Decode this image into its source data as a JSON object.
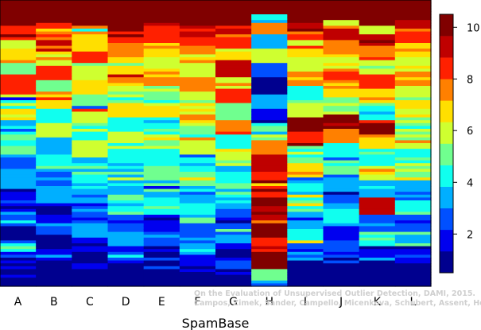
{
  "chart_data": {
    "type": "heatmap",
    "title": "",
    "xlabel": "SpamBase",
    "ylabel": "",
    "categories": [
      "A",
      "B",
      "C",
      "D",
      "E",
      "F",
      "G",
      "H",
      "I",
      "J",
      "K",
      "L"
    ],
    "color_scale": {
      "min": 0.5,
      "max": 10.5,
      "ticks": [
        2,
        4,
        6,
        8,
        10
      ],
      "colors": [
        "#00008f",
        "#0000ef",
        "#0050ff",
        "#00afff",
        "#10ffef",
        "#70ff8f",
        "#cfff30",
        "#ffdf00",
        "#ff8000",
        "#ff2000",
        "#bf0000",
        "#800000"
      ]
    },
    "grid": false,
    "legend": "colorbar-right",
    "rows_ranked": 100,
    "columns": [
      {
        "name": "A",
        "runs": [
          [
            0.07,
            10.5
          ],
          [
            0.02,
            9.6
          ],
          [
            0.04,
            8.2
          ],
          [
            0.03,
            6.3
          ],
          [
            0.05,
            7.1
          ],
          [
            0.04,
            5.4
          ],
          [
            0.06,
            8.6
          ],
          [
            0.05,
            4.2
          ],
          [
            0.04,
            6.8
          ],
          [
            0.05,
            3.1
          ],
          [
            0.06,
            4.8
          ],
          [
            0.05,
            2.6
          ],
          [
            0.06,
            3.4
          ],
          [
            0.07,
            1.9
          ],
          [
            0.05,
            2.8
          ],
          [
            0.05,
            1.2
          ],
          [
            0.04,
            4.2
          ],
          [
            0.04,
            1.6
          ],
          [
            0.05,
            0.8
          ]
        ]
      },
      {
        "name": "B",
        "runs": [
          [
            0.07,
            10.5
          ],
          [
            0.03,
            8.6
          ],
          [
            0.04,
            7.4
          ],
          [
            0.04,
            9.0
          ],
          [
            0.05,
            6.2
          ],
          [
            0.05,
            8.1
          ],
          [
            0.04,
            5.0
          ],
          [
            0.06,
            6.9
          ],
          [
            0.05,
            4.1
          ],
          [
            0.05,
            5.6
          ],
          [
            0.06,
            3.2
          ],
          [
            0.06,
            4.5
          ],
          [
            0.05,
            2.4
          ],
          [
            0.06,
            3.0
          ],
          [
            0.06,
            1.8
          ],
          [
            0.05,
            2.6
          ],
          [
            0.05,
            1.1
          ],
          [
            0.04,
            1.9
          ],
          [
            0.04,
            0.7
          ]
        ]
      },
      {
        "name": "C",
        "runs": [
          [
            0.06,
            10.5
          ],
          [
            0.03,
            9.8
          ],
          [
            0.04,
            7.6
          ],
          [
            0.05,
            6.6
          ],
          [
            0.04,
            8.4
          ],
          [
            0.06,
            5.8
          ],
          [
            0.05,
            7.0
          ],
          [
            0.05,
            4.9
          ],
          [
            0.06,
            6.2
          ],
          [
            0.05,
            4.3
          ],
          [
            0.06,
            5.5
          ],
          [
            0.06,
            3.8
          ],
          [
            0.05,
            4.6
          ],
          [
            0.06,
            3.1
          ],
          [
            0.06,
            2.4
          ],
          [
            0.05,
            3.6
          ],
          [
            0.06,
            1.6
          ],
          [
            0.05,
            0.8
          ]
        ]
      },
      {
        "name": "D",
        "runs": [
          [
            0.08,
            10.5
          ],
          [
            0.03,
            9.7
          ],
          [
            0.04,
            8.5
          ],
          [
            0.05,
            7.3
          ],
          [
            0.05,
            6.4
          ],
          [
            0.05,
            7.8
          ],
          [
            0.05,
            5.6
          ],
          [
            0.06,
            6.6
          ],
          [
            0.05,
            4.6
          ],
          [
            0.06,
            5.9
          ],
          [
            0.05,
            4.0
          ],
          [
            0.06,
            5.0
          ],
          [
            0.06,
            3.6
          ],
          [
            0.06,
            4.4
          ],
          [
            0.06,
            2.8
          ],
          [
            0.05,
            3.4
          ],
          [
            0.06,
            1.9
          ],
          [
            0.04,
            0.9
          ]
        ]
      },
      {
        "name": "E",
        "runs": [
          [
            0.08,
            10.5
          ],
          [
            0.02,
            9.9
          ],
          [
            0.05,
            8.0
          ],
          [
            0.05,
            7.0
          ],
          [
            0.05,
            6.1
          ],
          [
            0.05,
            7.6
          ],
          [
            0.06,
            5.3
          ],
          [
            0.05,
            6.4
          ],
          [
            0.06,
            4.5
          ],
          [
            0.05,
            5.8
          ],
          [
            0.06,
            3.9
          ],
          [
            0.05,
            5.0
          ],
          [
            0.06,
            3.3
          ],
          [
            0.06,
            4.2
          ],
          [
            0.06,
            2.1
          ],
          [
            0.05,
            2.9
          ],
          [
            0.05,
            1.3
          ],
          [
            0.05,
            0.8
          ]
        ]
      },
      {
        "name": "F",
        "runs": [
          [
            0.09,
            10.5
          ],
          [
            0.04,
            9.4
          ],
          [
            0.04,
            8.3
          ],
          [
            0.05,
            7.4
          ],
          [
            0.05,
            6.2
          ],
          [
            0.05,
            7.9
          ],
          [
            0.05,
            5.5
          ],
          [
            0.06,
            6.7
          ],
          [
            0.05,
            4.8
          ],
          [
            0.06,
            5.9
          ],
          [
            0.06,
            4.1
          ],
          [
            0.05,
            5.2
          ],
          [
            0.06,
            3.2
          ],
          [
            0.06,
            4.3
          ],
          [
            0.06,
            2.5
          ],
          [
            0.05,
            3.5
          ],
          [
            0.05,
            1.8
          ],
          [
            0.06,
            0.9
          ]
        ]
      },
      {
        "name": "G",
        "runs": [
          [
            0.09,
            10.5
          ],
          [
            0.03,
            9.0
          ],
          [
            0.05,
            8.7
          ],
          [
            0.04,
            7.0
          ],
          [
            0.05,
            9.3
          ],
          [
            0.05,
            6.2
          ],
          [
            0.05,
            8.1
          ],
          [
            0.06,
            5.4
          ],
          [
            0.05,
            7.2
          ],
          [
            0.05,
            4.6
          ],
          [
            0.06,
            5.9
          ],
          [
            0.05,
            3.9
          ],
          [
            0.06,
            4.8
          ],
          [
            0.05,
            3.2
          ],
          [
            0.06,
            2.4
          ],
          [
            0.05,
            3.6
          ],
          [
            0.05,
            1.6
          ],
          [
            0.04,
            2.8
          ],
          [
            0.06,
            0.9
          ]
        ]
      },
      {
        "name": "H",
        "runs": [
          [
            0.05,
            10.5
          ],
          [
            0.03,
            4.4
          ],
          [
            0.04,
            7.9
          ],
          [
            0.05,
            3.6
          ],
          [
            0.05,
            6.0
          ],
          [
            0.05,
            2.3
          ],
          [
            0.06,
            1.2
          ],
          [
            0.05,
            3.1
          ],
          [
            0.05,
            1.6
          ],
          [
            0.06,
            5.3
          ],
          [
            0.05,
            7.6
          ],
          [
            0.06,
            9.4
          ],
          [
            0.06,
            8.4
          ],
          [
            0.06,
            10.2
          ],
          [
            0.06,
            9.0
          ],
          [
            0.05,
            10.5
          ],
          [
            0.05,
            8.8
          ],
          [
            0.06,
            9.8
          ],
          [
            0.04,
            5.4
          ],
          [
            0.02,
            3.0
          ]
        ]
      },
      {
        "name": "I",
        "runs": [
          [
            0.08,
            10.5
          ],
          [
            0.03,
            9.6
          ],
          [
            0.04,
            8.0
          ],
          [
            0.05,
            6.8
          ],
          [
            0.05,
            5.8
          ],
          [
            0.05,
            7.5
          ],
          [
            0.05,
            4.6
          ],
          [
            0.06,
            6.1
          ],
          [
            0.05,
            10.0
          ],
          [
            0.05,
            8.6
          ],
          [
            0.06,
            5.0
          ],
          [
            0.05,
            6.6
          ],
          [
            0.06,
            3.9
          ],
          [
            0.06,
            5.4
          ],
          [
            0.06,
            3.0
          ],
          [
            0.05,
            4.1
          ],
          [
            0.06,
            2.2
          ],
          [
            0.05,
            1.3
          ]
        ]
      },
      {
        "name": "J",
        "runs": [
          [
            0.07,
            10.5
          ],
          [
            0.03,
            6.2
          ],
          [
            0.04,
            9.4
          ],
          [
            0.05,
            7.8
          ],
          [
            0.05,
            5.9
          ],
          [
            0.05,
            8.6
          ],
          [
            0.05,
            6.6
          ],
          [
            0.06,
            4.8
          ],
          [
            0.05,
            9.8
          ],
          [
            0.05,
            7.4
          ],
          [
            0.06,
            4.1
          ],
          [
            0.05,
            5.3
          ],
          [
            0.06,
            3.4
          ],
          [
            0.06,
            2.4
          ],
          [
            0.06,
            3.9
          ],
          [
            0.05,
            1.8
          ],
          [
            0.06,
            2.9
          ],
          [
            0.05,
            1.1
          ]
        ]
      },
      {
        "name": "K",
        "runs": [
          [
            0.09,
            10.5
          ],
          [
            0.03,
            5.8
          ],
          [
            0.04,
            9.0
          ],
          [
            0.05,
            7.6
          ],
          [
            0.05,
            5.6
          ],
          [
            0.05,
            8.3
          ],
          [
            0.05,
            6.5
          ],
          [
            0.06,
            4.6
          ],
          [
            0.05,
            9.7
          ],
          [
            0.05,
            7.1
          ],
          [
            0.06,
            4.2
          ],
          [
            0.05,
            6.1
          ],
          [
            0.06,
            3.4
          ],
          [
            0.06,
            9.2
          ],
          [
            0.06,
            2.9
          ],
          [
            0.05,
            4.0
          ],
          [
            0.05,
            2.1
          ],
          [
            0.05,
            1.2
          ]
        ]
      },
      {
        "name": "L",
        "runs": [
          [
            0.07,
            10.5
          ],
          [
            0.04,
            9.2
          ],
          [
            0.04,
            8.1
          ],
          [
            0.05,
            7.0
          ],
          [
            0.05,
            6.2
          ],
          [
            0.05,
            7.6
          ],
          [
            0.05,
            5.5
          ],
          [
            0.06,
            6.6
          ],
          [
            0.05,
            4.7
          ],
          [
            0.06,
            5.8
          ],
          [
            0.05,
            4.0
          ],
          [
            0.06,
            5.1
          ],
          [
            0.06,
            3.5
          ],
          [
            0.06,
            4.3
          ],
          [
            0.06,
            2.8
          ],
          [
            0.05,
            3.3
          ],
          [
            0.05,
            1.7
          ],
          [
            0.05,
            0.9
          ]
        ]
      }
    ]
  },
  "watermark": {
    "line1": "On the Evaluation of Unsupervised Outlier Detection, DAMI, 2015.",
    "line2": "Campos, Zimek, Sander, Campello, Micenkova, Schubert, Assent, Houle"
  }
}
